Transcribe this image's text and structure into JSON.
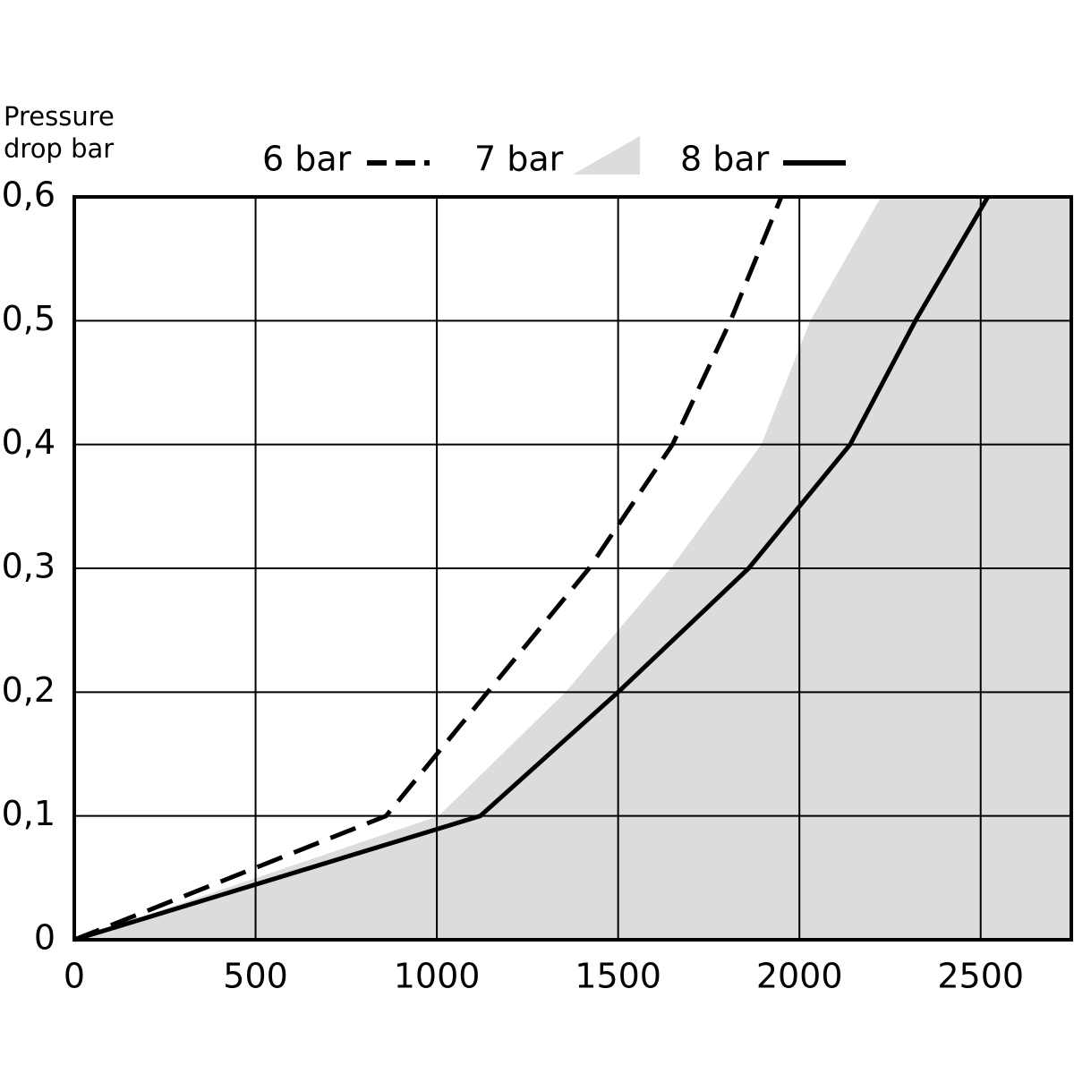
{
  "chart_data": {
    "type": "line",
    "y_label": "Pressure drop bar",
    "xlim": [
      0,
      2750
    ],
    "ylim": [
      0,
      0.6
    ],
    "xticks": [
      0,
      500,
      1000,
      1500,
      2000,
      2500
    ],
    "yticks": [
      0,
      {
        "value": 0.1,
        "label": "0,1"
      },
      {
        "value": 0.2,
        "label": "0,2"
      },
      {
        "value": 0.3,
        "label": "0,3"
      },
      {
        "value": 0.4,
        "label": "0,4"
      },
      {
        "value": 0.5,
        "label": "0,5"
      },
      {
        "value": 0.6,
        "label": "0,6"
      }
    ],
    "grid": true,
    "series": [
      {
        "name": "6 bar",
        "style": "dashed",
        "color": "#000000",
        "x": [
          0,
          860,
          1140,
          1420,
          1650,
          1810,
          1950
        ],
        "values": [
          0,
          0.1,
          0.2,
          0.3,
          0.4,
          0.5,
          0.6
        ]
      },
      {
        "name": "7 bar",
        "style": "area",
        "color": "#dcdcdd",
        "x": [
          0,
          1005,
          1355,
          1645,
          1895,
          2030,
          2225
        ],
        "values": [
          0,
          0.1,
          0.2,
          0.3,
          0.4,
          0.5,
          0.6
        ]
      },
      {
        "name": "8 bar",
        "style": "solid",
        "color": "#000000",
        "x": [
          0,
          1120,
          1500,
          1860,
          2140,
          2320,
          2520
        ],
        "values": [
          0,
          0.1,
          0.2,
          0.3,
          0.4,
          0.5,
          0.6
        ]
      }
    ]
  }
}
